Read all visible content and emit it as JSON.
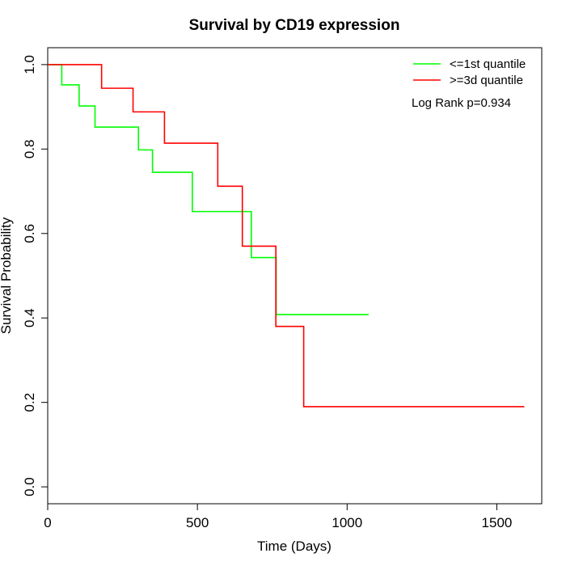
{
  "chart_data": {
    "type": "line",
    "title": "Survival by CD19 expression",
    "xlabel": "Time (Days)",
    "ylabel": "Survival Probability",
    "xlim": [
      0,
      1650
    ],
    "ylim": [
      -0.04,
      1.04
    ],
    "x_ticks": [
      0,
      500,
      1000,
      1500
    ],
    "y_ticks": [
      0.0,
      0.2,
      0.4,
      0.6,
      0.8,
      1.0
    ],
    "x_tick_labels": [
      "0",
      "500",
      "1000",
      "1500"
    ],
    "y_tick_labels": [
      "0.0",
      "0.2",
      "0.4",
      "0.6",
      "0.8",
      "1.0"
    ],
    "grid": false,
    "legend_position": "top-right",
    "annotation": "Log Rank p=0.934",
    "series": [
      {
        "name": "<=1st quantile",
        "color": "#00ff00",
        "step": true,
        "x": [
          0,
          47,
          105,
          158,
          303,
          350,
          483,
          680,
          763,
          1072
        ],
        "y": [
          1.0,
          0.952,
          0.902,
          0.852,
          0.798,
          0.745,
          0.652,
          0.543,
          0.408,
          0.408
        ]
      },
      {
        "name": ">=3d quantile",
        "color": "#ff0000",
        "step": true,
        "x": [
          0,
          180,
          285,
          390,
          568,
          650,
          762,
          855,
          1592
        ],
        "y": [
          1.0,
          0.944,
          0.888,
          0.814,
          0.712,
          0.57,
          0.38,
          0.19,
          0.19
        ]
      }
    ]
  }
}
